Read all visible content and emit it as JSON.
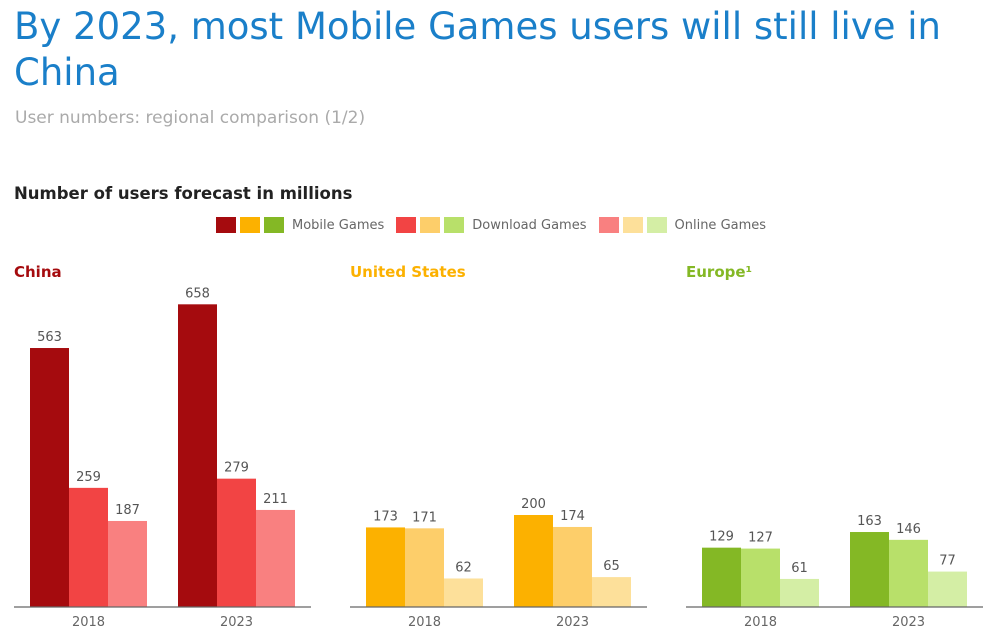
{
  "header": {
    "title": "By 2023, most Mobile Games users will still live in China",
    "subtitle": "User numbers: regional comparison (1/2)"
  },
  "chart_data": {
    "type": "bar",
    "title": "Number of users forecast in millions",
    "legend": {
      "placement": "top",
      "entries": [
        {
          "name": "Mobile Games",
          "colors": [
            "#a50b0e",
            "#fcb100",
            "#84b825"
          ]
        },
        {
          "name": "Download Games",
          "colors": [
            "#f24444",
            "#fdce6a",
            "#b8e06a"
          ]
        },
        {
          "name": "Online Games",
          "colors": [
            "#f98080",
            "#fde09a",
            "#d4eea5"
          ]
        }
      ]
    },
    "categories": [
      "2018",
      "2023"
    ],
    "grid": false,
    "panels": [
      {
        "region": "China",
        "title_color": "#a50b0e",
        "series": [
          {
            "name": "Mobile Games",
            "values": [
              563,
              658
            ],
            "color": "#a50b0e"
          },
          {
            "name": "Download Games",
            "values": [
              259,
              279
            ],
            "color": "#f24444"
          },
          {
            "name": "Online Games",
            "values": [
              187,
              211
            ],
            "color": "#f98080"
          }
        ]
      },
      {
        "region": "United States",
        "title_color": "#fcb100",
        "series": [
          {
            "name": "Mobile Games",
            "values": [
              173,
              200
            ],
            "color": "#fcb100"
          },
          {
            "name": "Download Games",
            "values": [
              171,
              174
            ],
            "color": "#fdce6a"
          },
          {
            "name": "Online Games",
            "values": [
              62,
              65
            ],
            "color": "#fde09a"
          }
        ]
      },
      {
        "region": "Europe¹",
        "title_color": "#84b825",
        "series": [
          {
            "name": "Mobile Games",
            "values": [
              129,
              163
            ],
            "color": "#84b825"
          },
          {
            "name": "Download Games",
            "values": [
              127,
              146
            ],
            "color": "#b8e06a"
          },
          {
            "name": "Online Games",
            "values": [
              61,
              77
            ],
            "color": "#d4eea5"
          }
        ]
      }
    ]
  }
}
